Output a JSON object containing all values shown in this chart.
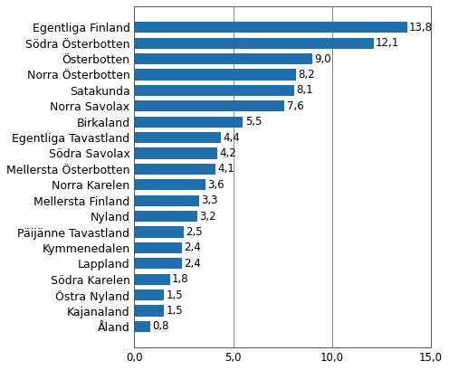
{
  "categories": [
    "Åland",
    "Kajanaland",
    "Östra Nyland",
    "Södra Karelen",
    "Lappland",
    "Kymmenedalen",
    "Päijänne Tavastland",
    "Nyland",
    "Mellersta Finland",
    "Norra Karelen",
    "Mellersta Österbotten",
    "Södra Savolax",
    "Egentliga Tavastland",
    "Birkaland",
    "Norra Savolax",
    "Satakunda",
    "Norra Österbotten",
    "Österbotten",
    "Södra Österbotten",
    "Egentliga Finland"
  ],
  "values": [
    0.8,
    1.5,
    1.5,
    1.8,
    2.4,
    2.4,
    2.5,
    3.2,
    3.3,
    3.6,
    4.1,
    4.2,
    4.4,
    5.5,
    7.6,
    8.1,
    8.2,
    9.0,
    12.1,
    13.8
  ],
  "bar_color": "#1f6fad",
  "xlim": [
    0,
    15.0
  ],
  "xticks": [
    0.0,
    5.0,
    10.0,
    15.0
  ],
  "xtick_labels": [
    "0,0",
    "5,0",
    "10,0",
    "15,0"
  ],
  "grid_color": "#888888",
  "bar_height": 0.7,
  "label_fontsize": 9.0,
  "tick_fontsize": 8.5,
  "value_fontsize": 8.5,
  "background_color": "#ffffff",
  "border_color": "#555555"
}
